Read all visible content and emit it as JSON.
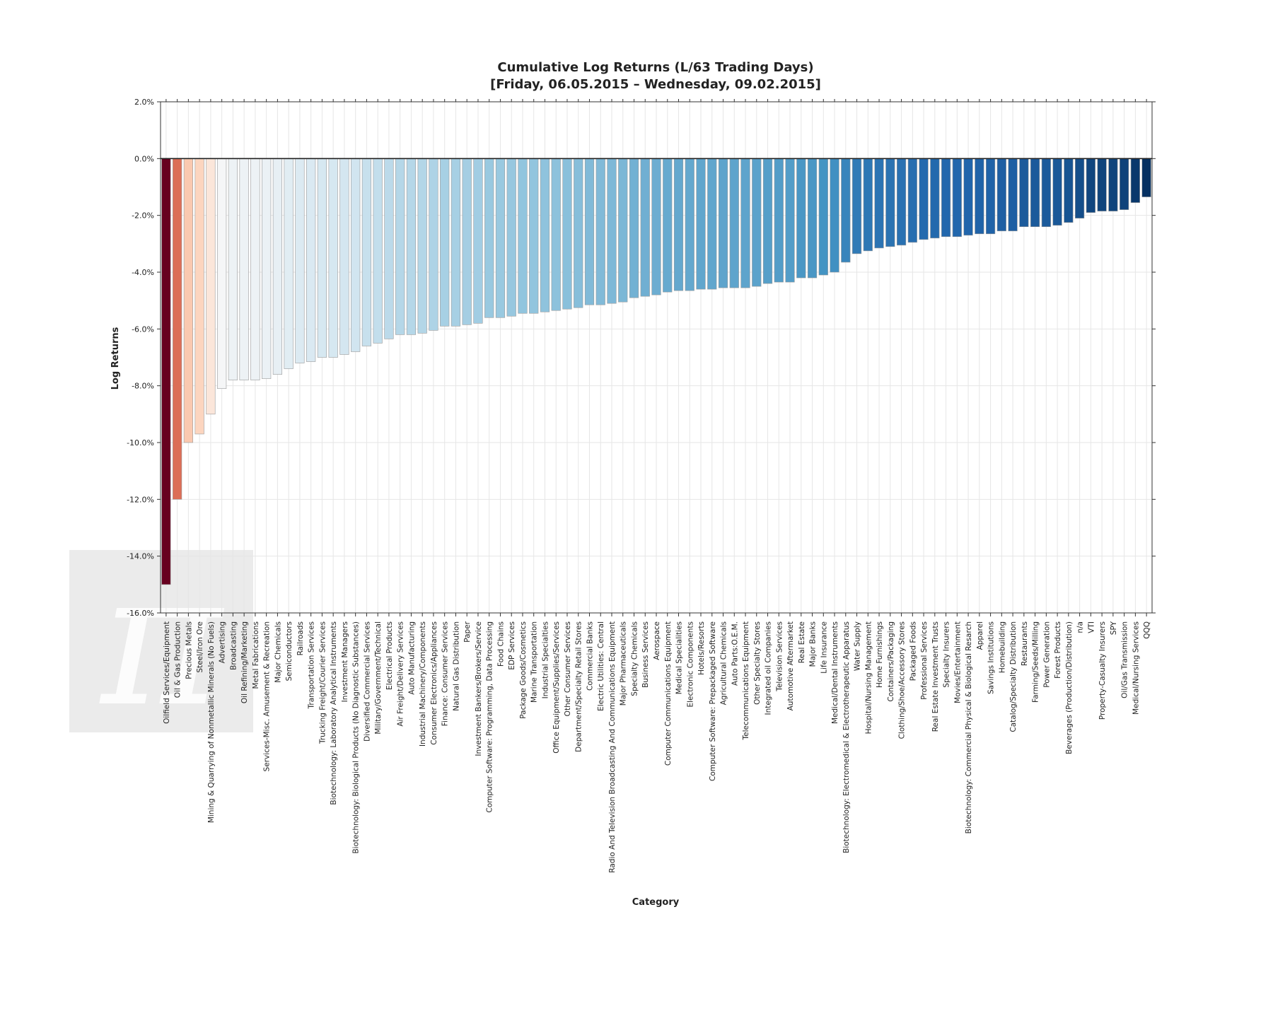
{
  "chart_data": {
    "type": "bar",
    "title": "Cumulative Log Returns (L/63 Trading Days)",
    "subtitle": "[Friday, 06.05.2015 – Wednesday, 09.02.2015]",
    "xlabel": "Category",
    "ylabel": "Log Returns",
    "ylim": [
      -16,
      2
    ],
    "grid": true,
    "y_ticks": [
      2,
      0,
      -2,
      -4,
      -6,
      -8,
      -10,
      -12,
      -14,
      -16
    ],
    "y_tick_labels": [
      "2.0%",
      "0.0%",
      "-2.0%",
      "-4.0%",
      "-6.0%",
      "-8.0%",
      "-10.0%",
      "-12.0%",
      "-14.0%",
      "-16.0%"
    ],
    "watermark": "π",
    "categories": [
      "Oilfield Services/Equipment",
      "Oil & Gas Production",
      "Precious Metals",
      "Steel/Iron Ore",
      "Mining & Quarrying of Nonmetallic Minerals (No Fuels)",
      "Advertising",
      "Broadcasting",
      "Oil Refining/Marketing",
      "Metal Fabrications",
      "Services-Misc. Amusement & Recreation",
      "Major Chemicals",
      "Semiconductors",
      "Railroads",
      "Transportation Services",
      "Trucking Freight/Courier Services",
      "Biotechnology: Laboratory Analytical Instruments",
      "Investment Managers",
      "Biotechnology: Biological Products (No Diagnostic Substances)",
      "Diversified Commercial Services",
      "Military/Government/Technical",
      "Electrical Products",
      "Air Freight/Delivery Services",
      "Auto Manufacturing",
      "Industrial Machinery/Components",
      "Consumer Electronics/Appliances",
      "Finance: Consumer Services",
      "Natural Gas Distribution",
      "Paper",
      "Investment Bankers/Brokers/Service",
      "Computer Software: Programming, Data Processing",
      "Food Chains",
      "EDP Services",
      "Package Goods/Cosmetics",
      "Marine Transportation",
      "Industrial Specialties",
      "Office Equipment/Supplies/Services",
      "Other Consumer Services",
      "Department/Specialty Retail Stores",
      "Commercial Banks",
      "Electric Utilities: Central",
      "Radio And Television Broadcasting And Communications Equipment",
      "Major Pharmaceuticals",
      "Specialty Chemicals",
      "Business Services",
      "Aerospace",
      "Computer Communications Equipment",
      "Medical Specialities",
      "Electronic Components",
      "Hotels/Resorts",
      "Computer Software: Prepackaged Software",
      "Agricultural Chemicals",
      "Auto Parts:O.E.M.",
      "Telecommunications Equipment",
      "Other Specialty Stores",
      "Integrated oil Companies",
      "Television Services",
      "Automotive Aftermarket",
      "Real Estate",
      "Major Banks",
      "Life Insurance",
      "Medical/Dental Instruments",
      "Biotechnology: Electromedical & Electrotherapeutic Apparatus",
      "Water Supply",
      "Hospital/Nursing Management",
      "Home Furnishings",
      "Containers/Packaging",
      "Clothing/Shoe/Accessory Stores",
      "Packaged Foods",
      "Professional Services",
      "Real Estate Investment Trusts",
      "Specialty Insurers",
      "Movies/Entertainment",
      "Biotechnology: Commercial Physical & Biological Resarch",
      "Apparel",
      "Savings Institutions",
      "Homebuilding",
      "Catalog/Specialty Distribution",
      "Restaurants",
      "Farming/Seeds/Milling",
      "Power Generation",
      "Forest Products",
      "Beverages (Production/Distribution)",
      "n/a",
      "VTI",
      "Property-Casualty Insurers",
      "SPY",
      "Oil/Gas Transmission",
      "Medical/Nursing Services",
      "QQQ"
    ],
    "values": [
      -15.0,
      -12.0,
      -10.0,
      -9.7,
      -9.0,
      -8.1,
      -7.8,
      -7.8,
      -7.8,
      -7.75,
      -7.6,
      -7.4,
      -7.2,
      -7.15,
      -7.0,
      -7.0,
      -6.9,
      -6.8,
      -6.6,
      -6.5,
      -6.35,
      -6.2,
      -6.2,
      -6.15,
      -6.05,
      -5.9,
      -5.9,
      -5.85,
      -5.8,
      -5.6,
      -5.6,
      -5.55,
      -5.45,
      -5.45,
      -5.4,
      -5.35,
      -5.3,
      -5.25,
      -5.15,
      -5.15,
      -5.1,
      -5.05,
      -4.9,
      -4.85,
      -4.8,
      -4.7,
      -4.65,
      -4.65,
      -4.6,
      -4.6,
      -4.55,
      -4.55,
      -4.55,
      -4.5,
      -4.4,
      -4.35,
      -4.35,
      -4.2,
      -4.2,
      -4.1,
      -4.0,
      -3.65,
      -3.35,
      -3.25,
      -3.15,
      -3.1,
      -3.05,
      -2.95,
      -2.85,
      -2.8,
      -2.75,
      -2.75,
      -2.7,
      -2.65,
      -2.65,
      -2.55,
      -2.55,
      -2.4,
      -2.4,
      -2.4,
      -2.35,
      -2.25,
      -2.1,
      -1.9,
      -1.85,
      -1.85,
      -1.8,
      -1.55,
      -1.35
    ]
  }
}
